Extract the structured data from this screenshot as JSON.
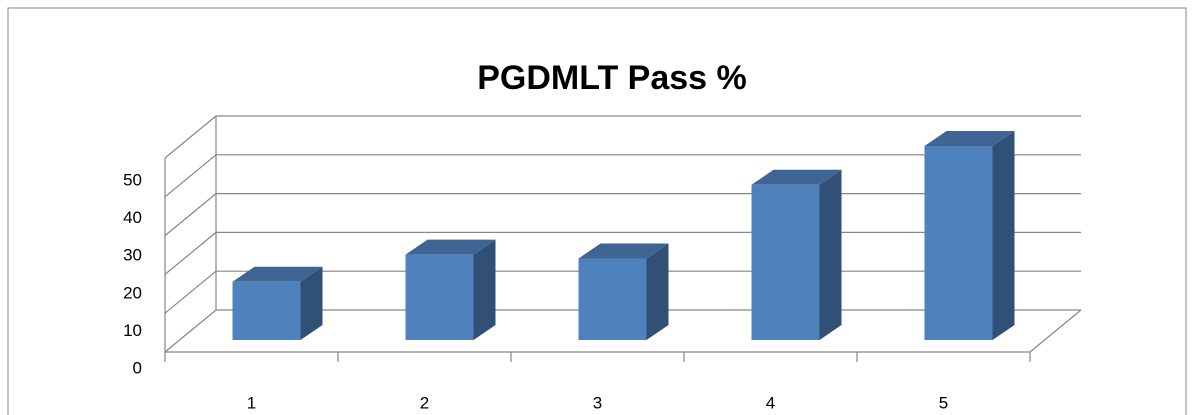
{
  "chart_data": {
    "type": "bar3d",
    "title": "PGDMLT Pass %",
    "categories": [
      "1",
      "2",
      "3",
      "4",
      "5"
    ],
    "values": [
      15,
      22,
      21,
      40,
      50
    ],
    "color": "#4f81bd",
    "ylim": [
      0,
      50
    ],
    "yticks": [
      0,
      10,
      20,
      30,
      40,
      50
    ],
    "grid": true
  }
}
